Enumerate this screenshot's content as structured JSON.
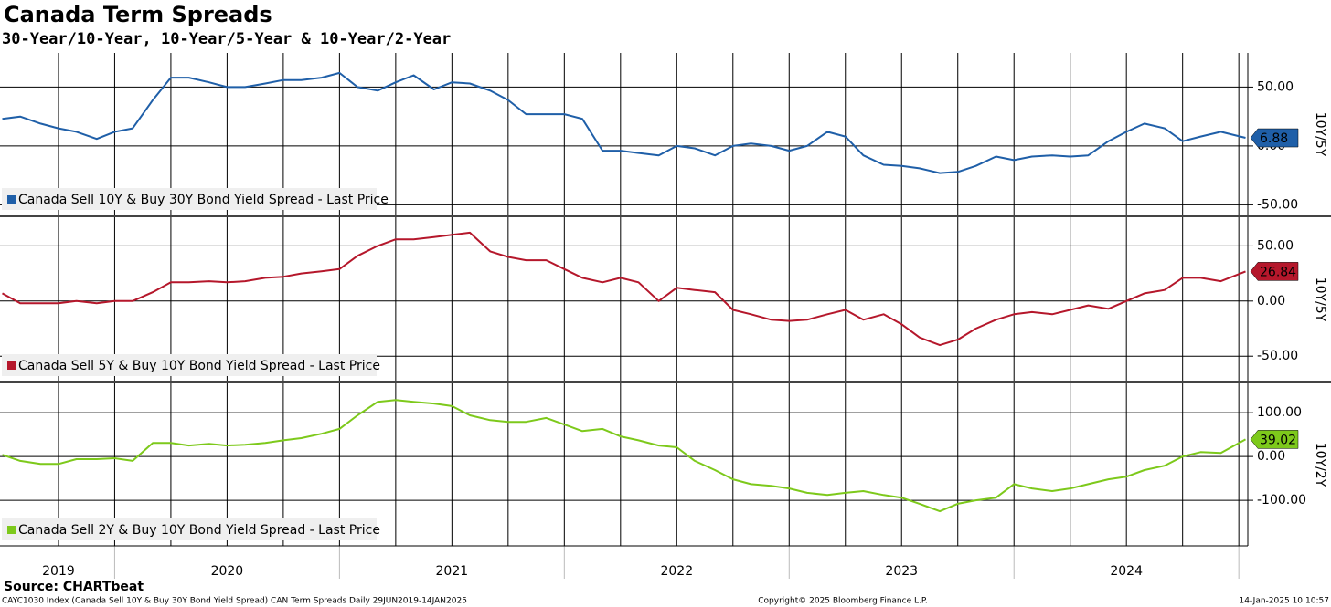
{
  "title": "Canada Term Spreads",
  "subtitle": "30-Year/10-Year, 10-Year/5-Year & 10-Year/2-Year",
  "source": "Source: CHARTbeat",
  "footer_left": "CAYC1030 Index (Canada Sell 10Y & Buy 30Y Bond Yield Spread) CAN Term Spreads  Daily 29JUN2019-14JAN2025",
  "footer_center": "Copyright© 2025 Bloomberg Finance L.P.",
  "footer_right": "14-Jan-2025 10:10:57",
  "time_axis": {
    "xlim": [
      2019.49,
      2025.04
    ],
    "xticks": [
      {
        "value": 2019.75,
        "label": "2019"
      },
      {
        "value": 2020.5,
        "label": "2020"
      },
      {
        "value": 2021.5,
        "label": "2021"
      },
      {
        "value": 2022.5,
        "label": "2022"
      },
      {
        "value": 2023.5,
        "label": "2023"
      },
      {
        "value": 2024.5,
        "label": "2024"
      }
    ],
    "year_bounds": [
      2020,
      2021,
      2022,
      2023,
      2024,
      2025
    ],
    "xgrid": [
      2019.75,
      2020,
      2020.25,
      2020.5,
      2020.75,
      2021,
      2021.25,
      2021.5,
      2021.75,
      2022,
      2022.25,
      2022.5,
      2022.75,
      2023,
      2023.25,
      2023.5,
      2023.75,
      2024,
      2024.25,
      2024.5,
      2024.75,
      2025
    ],
    "x": [
      2019.5,
      2019.58,
      2019.67,
      2019.75,
      2019.83,
      2019.92,
      2020,
      2020.08,
      2020.17,
      2020.25,
      2020.33,
      2020.42,
      2020.5,
      2020.58,
      2020.67,
      2020.75,
      2020.83,
      2020.92,
      2021,
      2021.08,
      2021.17,
      2021.25,
      2021.33,
      2021.42,
      2021.5,
      2021.58,
      2021.67,
      2021.75,
      2021.83,
      2021.92,
      2022,
      2022.08,
      2022.17,
      2022.25,
      2022.33,
      2022.42,
      2022.5,
      2022.58,
      2022.67,
      2022.75,
      2022.83,
      2022.92,
      2023,
      2023.08,
      2023.17,
      2023.25,
      2023.33,
      2023.42,
      2023.5,
      2023.58,
      2023.67,
      2023.75,
      2023.83,
      2023.92,
      2024,
      2024.08,
      2024.17,
      2024.25,
      2024.33,
      2024.42,
      2024.5,
      2024.58,
      2024.67,
      2024.75,
      2024.83,
      2024.92,
      2025.03
    ]
  },
  "chart_data": [
    {
      "type": "line",
      "axis_label": "10Y/5Y",
      "ylim": [
        -59,
        79
      ],
      "yticks": [
        {
          "value": 50,
          "label": "50.00"
        },
        {
          "value": 0,
          "label": "0.00"
        },
        {
          "value": -50,
          "label": "-50.00"
        }
      ],
      "series": [
        {
          "name": "Canada Sell 10Y & Buy 30Y Bond Yield Spread - Last Price",
          "color": "#1f5fa8",
          "values": [
            23,
            25,
            19,
            15,
            12,
            6,
            12,
            15,
            39,
            58,
            58,
            54,
            50,
            50,
            53,
            56,
            56,
            58,
            62,
            50,
            47,
            54,
            60,
            48,
            54,
            53,
            47,
            39,
            27,
            27,
            27,
            23,
            -4,
            -4,
            -6,
            -8,
            0,
            -2,
            -8,
            0,
            2,
            0,
            -4,
            0,
            12,
            8,
            -8,
            -16,
            -17,
            -19,
            -23,
            -22,
            -17,
            -9,
            -12,
            -9,
            -8,
            -9,
            -8,
            4,
            12,
            19,
            15,
            4,
            8,
            12,
            6.88
          ]
        }
      ]
    },
    {
      "type": "line",
      "axis_label": "10Y/5Y",
      "ylim": [
        -73,
        76
      ],
      "yticks": [
        {
          "value": 50,
          "label": "50.00"
        },
        {
          "value": 0,
          "label": "0.00"
        },
        {
          "value": -50,
          "label": "-50.00"
        }
      ],
      "series": [
        {
          "name": "Canada Sell 5Y & Buy 10Y Bond Yield Spread - Last Price",
          "color": "#b5172b",
          "values": [
            7,
            -2,
            -2,
            -2,
            0,
            -2,
            0,
            0,
            8,
            17,
            17,
            18,
            17,
            18,
            21,
            22,
            25,
            27,
            29,
            41,
            50,
            56,
            56,
            58,
            60,
            62,
            45,
            40,
            37,
            37,
            29,
            21,
            17,
            21,
            17,
            0,
            12,
            10,
            8,
            -8,
            -12,
            -17,
            -18,
            -17,
            -12,
            -8,
            -17,
            -12,
            -21,
            -33,
            -40,
            -35,
            -25,
            -17,
            -12,
            -10,
            -12,
            -8,
            -4,
            -7,
            0,
            7,
            10,
            21,
            21,
            18,
            26.84
          ]
        }
      ]
    },
    {
      "type": "line",
      "axis_label": "10Y/2Y",
      "ylim": [
        -204,
        167
      ],
      "yticks": [
        {
          "value": 100,
          "label": "100.00"
        },
        {
          "value": 0,
          "label": "0.00"
        },
        {
          "value": -100,
          "label": "-100.00"
        }
      ],
      "series": [
        {
          "name": "Canada Sell 2Y & Buy 10Y Bond Yield Spread - Last Price",
          "color": "#7dc91b",
          "values": [
            4,
            -10,
            -17,
            -17,
            -6,
            -6,
            -4,
            -10,
            31,
            31,
            25,
            29,
            25,
            27,
            31,
            37,
            42,
            52,
            63,
            94,
            125,
            129,
            125,
            121,
            115,
            94,
            83,
            79,
            79,
            88,
            73,
            58,
            63,
            46,
            37,
            25,
            21,
            -10,
            -31,
            -52,
            -63,
            -67,
            -73,
            -83,
            -88,
            -83,
            -79,
            -88,
            -94,
            -108,
            -125,
            -108,
            -100,
            -94,
            -63,
            -73,
            -79,
            -73,
            -63,
            -52,
            -46,
            -31,
            -21,
            0,
            10,
            8,
            39.02
          ]
        }
      ]
    }
  ]
}
